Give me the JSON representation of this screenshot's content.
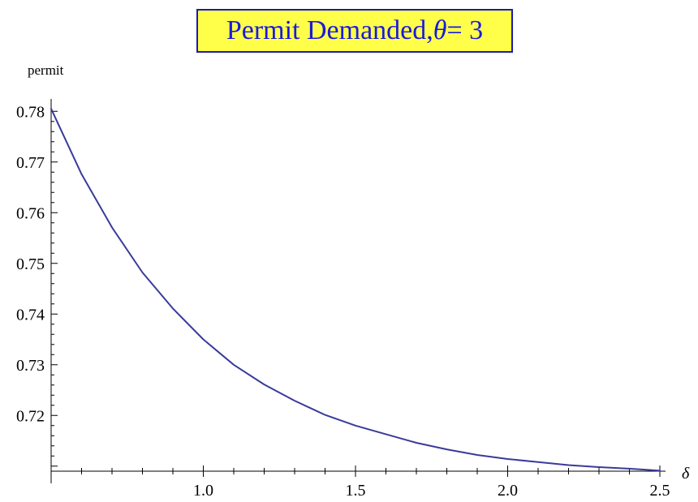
{
  "chart_data": {
    "type": "line",
    "title": {
      "prefix": "Permit Demanded, ",
      "symbol": "θ",
      "suffix": " = 3"
    },
    "xlabel": "δ",
    "ylabel": "permit",
    "xlim": [
      0.5,
      2.5
    ],
    "ylim": [
      0.709,
      0.781
    ],
    "x_ticks": [
      "1.0",
      "1.5",
      "2.0",
      "2.5"
    ],
    "y_ticks": [
      "0.72",
      "0.73",
      "0.74",
      "0.75",
      "0.76",
      "0.77",
      "0.78"
    ],
    "grid": false,
    "legend": "none",
    "series": [
      {
        "color": "#3a3a9c",
        "x": [
          0.5,
          0.6,
          0.7,
          0.8,
          0.9,
          1.0,
          1.1,
          1.2,
          1.3,
          1.4,
          1.5,
          1.6,
          1.7,
          1.8,
          1.9,
          2.0,
          2.1,
          2.2,
          2.3,
          2.4,
          2.5
        ],
        "y": [
          0.7805,
          0.7676,
          0.7571,
          0.7482,
          0.7411,
          0.735,
          0.73,
          0.7261,
          0.7229,
          0.7201,
          0.718,
          0.7163,
          0.7146,
          0.7133,
          0.7122,
          0.7114,
          0.7108,
          0.7102,
          0.7098,
          0.7095,
          0.7091
        ]
      }
    ]
  }
}
